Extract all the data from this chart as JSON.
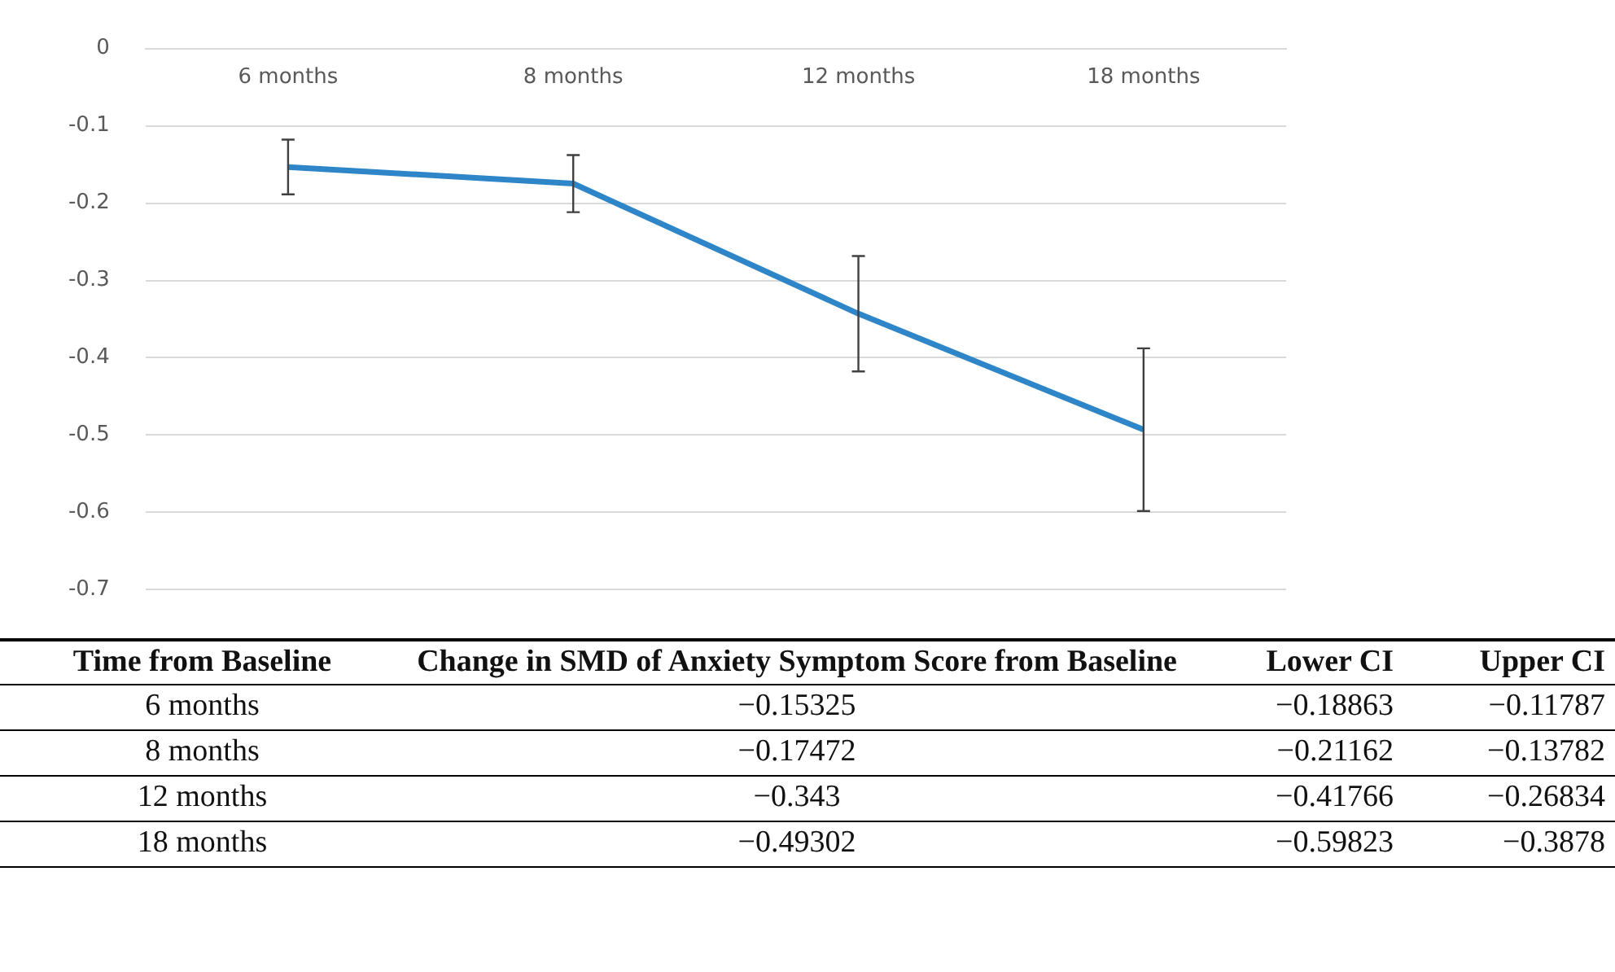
{
  "chart_data": {
    "type": "line",
    "categories": [
      "6 months",
      "8 months",
      "12 months",
      "18 months"
    ],
    "values": [
      -0.15325,
      -0.17472,
      -0.343,
      -0.49302
    ],
    "errors": [
      [
        -0.18863,
        -0.11787
      ],
      [
        -0.21162,
        -0.13782
      ],
      [
        -0.41766,
        -0.26834
      ],
      [
        -0.59823,
        -0.3878
      ]
    ],
    "color": "#2e86c8",
    "ylim": [
      -0.7,
      0
    ],
    "yticks": [
      0,
      -0.1,
      -0.2,
      -0.3,
      -0.4,
      -0.5,
      -0.6,
      -0.7
    ],
    "grid": "y",
    "legend": false,
    "marker": "none",
    "line_style": "solid",
    "annotations": [
      "Time from Baseline",
      "Change in SMD of Anxiety Symptom Score from Baseline",
      "Lower CI",
      "Upper CI",
      "−0.15325",
      "−0.18863",
      "−0.11787",
      "−0.17472",
      "−0.21162",
      "−0.13782",
      "−0.343",
      "−0.41766",
      "−0.26834",
      "−0.49302",
      "−0.59823",
      "−0.3878"
    ]
  }
}
